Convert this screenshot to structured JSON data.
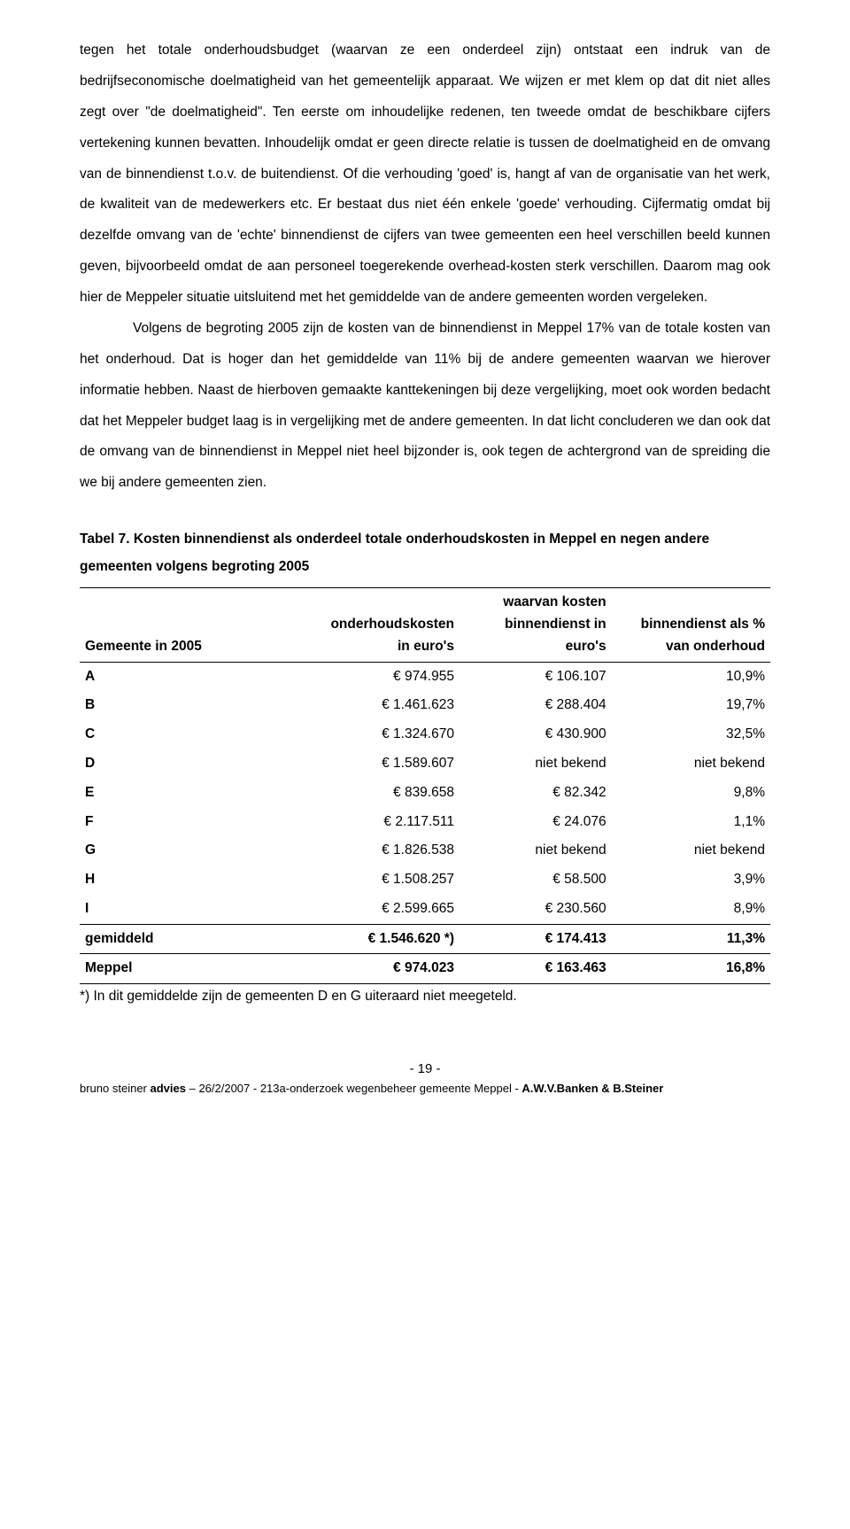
{
  "paragraphs": {
    "p1": "tegen het totale onderhoudsbudget (waarvan ze een onderdeel zijn) ontstaat een indruk van de bedrijfseconomische doelmatigheid van het gemeentelijk apparaat. We wijzen er met klem op dat dit niet alles zegt over \"de doelmatigheid\". Ten eerste om inhoudelijke redenen, ten tweede omdat de beschikbare cijfers vertekening kunnen bevatten. Inhoudelijk omdat er geen directe relatie is tussen de doelmatigheid en de omvang van de binnendienst t.o.v. de buitendienst. Of die verhouding 'goed' is, hangt af van de organisatie van het werk, de kwaliteit van de medewerkers etc. Er bestaat dus niet één enkele 'goede' verhouding. Cijfermatig omdat bij dezelfde omvang van de 'echte' binnendienst de cijfers van twee gemeenten een heel verschillen beeld kunnen geven, bijvoorbeeld omdat de aan personeel toegerekende overhead-kosten sterk verschillen. Daarom mag ook hier de Meppeler situatie uitsluitend met het gemiddelde van de andere gemeenten worden vergeleken.",
    "p2": "Volgens de begroting 2005 zijn de kosten van de binnendienst in Meppel 17% van de totale kosten van het onderhoud. Dat is hoger dan het gemiddelde van 11% bij de andere gemeenten waarvan we hierover informatie hebben. Naast de hierboven gemaakte kanttekeningen bij deze vergelijking, moet ook worden bedacht dat het Meppeler budget laag is in vergelijking met de andere gemeenten. In dat licht concluderen we dan ook dat de omvang van de binnendienst in Meppel niet heel bijzonder is, ook tegen de achtergrond van de spreiding die we bij andere gemeenten zien."
  },
  "table": {
    "title": "Tabel 7. Kosten binnendienst als onderdeel totale onderhoudskosten in Meppel en negen andere gemeenten volgens begroting 2005",
    "headers": {
      "c0": "Gemeente in 2005",
      "c1a": "onderhoudskosten",
      "c1b": "in euro's",
      "c2a": "waarvan kosten",
      "c2b": "binnendienst in",
      "c2c": "euro's",
      "c3a": "binnendienst als %",
      "c3b": "van onderhoud"
    },
    "rows": [
      {
        "label": "A",
        "c1": "€ 974.955",
        "c2": "€ 106.107",
        "c3": "10,9%"
      },
      {
        "label": "B",
        "c1": "€ 1.461.623",
        "c2": "€ 288.404",
        "c3": "19,7%"
      },
      {
        "label": "C",
        "c1": "€ 1.324.670",
        "c2": "€ 430.900",
        "c3": "32,5%"
      },
      {
        "label": "D",
        "c1": "€ 1.589.607",
        "c2": "niet bekend",
        "c3": "niet bekend"
      },
      {
        "label": "E",
        "c1": "€ 839.658",
        "c2": "€ 82.342",
        "c3": "9,8%"
      },
      {
        "label": "F",
        "c1": "€ 2.117.511",
        "c2": "€ 24.076",
        "c3": "1,1%"
      },
      {
        "label": "G",
        "c1": "€ 1.826.538",
        "c2": "niet bekend",
        "c3": "niet bekend"
      },
      {
        "label": "H",
        "c1": "€ 1.508.257",
        "c2": "€ 58.500",
        "c3": "3,9%"
      },
      {
        "label": "I",
        "c1": "€ 2.599.665",
        "c2": "€ 230.560",
        "c3": "8,9%"
      }
    ],
    "avg": {
      "label": "gemiddeld",
      "c1": "€ 1.546.620 *)",
      "c2": "€ 174.413",
      "c3": "11,3%"
    },
    "meppel": {
      "label": "Meppel",
      "c1": "€ 974.023",
      "c2": "€ 163.463",
      "c3": "16,8%"
    },
    "note": "*) In dit gemiddelde zijn de gemeenten D en G uiteraard niet meegeteld."
  },
  "page_number": "- 19 -",
  "footer": {
    "prefix": "bruno steiner ",
    "advies": "advies",
    "middle": " – 26/2/2007 - 213a-onderzoek wegenbeheer gemeente Meppel - ",
    "authors": "A.W.V.Banken & B.Steiner"
  }
}
